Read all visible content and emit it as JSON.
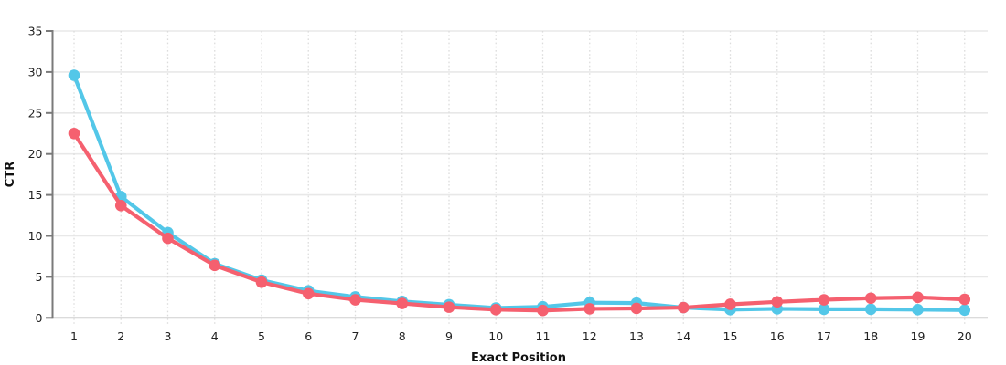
{
  "chart_data": {
    "type": "line",
    "title": "",
    "xlabel": "Exact Position",
    "ylabel": "CTR",
    "x": [
      1,
      2,
      3,
      4,
      5,
      6,
      7,
      8,
      9,
      10,
      11,
      12,
      13,
      14,
      15,
      16,
      17,
      18,
      19,
      20
    ],
    "series": [
      {
        "name": "blue",
        "color": "#53C7E8",
        "values": [
          29.6,
          14.8,
          10.4,
          6.6,
          4.6,
          3.3,
          2.55,
          2.0,
          1.6,
          1.2,
          1.35,
          1.85,
          1.8,
          1.25,
          1.0,
          1.1,
          1.05,
          1.05,
          1.0,
          0.95
        ]
      },
      {
        "name": "red",
        "color": "#F5606F",
        "values": [
          22.5,
          13.7,
          9.7,
          6.4,
          4.35,
          2.95,
          2.2,
          1.75,
          1.3,
          1.0,
          0.9,
          1.1,
          1.15,
          1.25,
          1.65,
          1.95,
          2.2,
          2.4,
          2.5,
          2.25
        ]
      }
    ],
    "ylim": [
      0,
      35
    ],
    "yticks": [
      0,
      5,
      10,
      15,
      20,
      25,
      30,
      35
    ],
    "xticks": [
      1,
      2,
      3,
      4,
      5,
      6,
      7,
      8,
      9,
      10,
      11,
      12,
      13,
      14,
      15,
      16,
      17,
      18,
      19,
      20
    ],
    "grid": true,
    "legend_position": "none"
  },
  "styles": {
    "background": "#ffffff",
    "hgrid_color": "#e8e8e8",
    "zero_line_color": "#cfcfcf",
    "vgrid_color": "#dcdcdc",
    "axis_color": "#7a7a7a",
    "tick_label_color": "#222222",
    "axis_title_color": "#111111"
  }
}
